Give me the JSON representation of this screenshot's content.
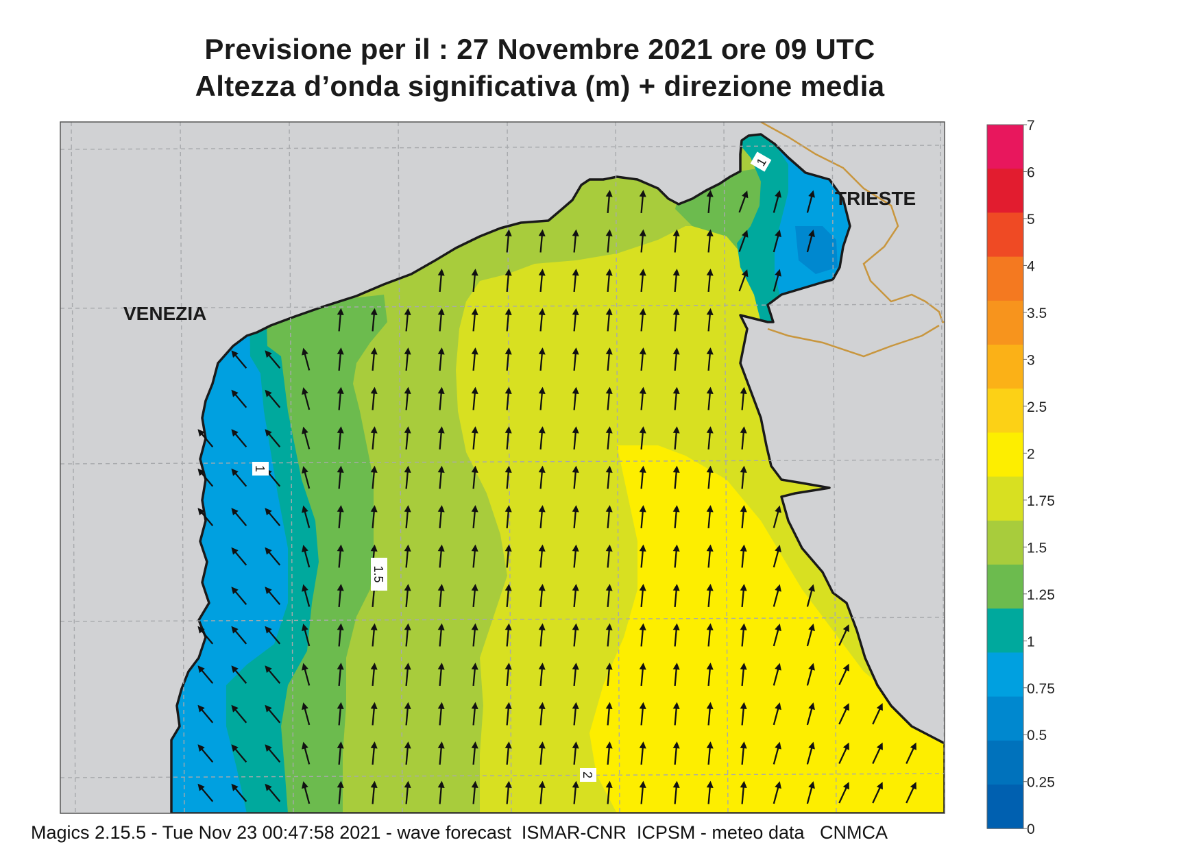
{
  "title_line1": "Previsione per il  :  27 Novembre  2021   ore 09 UTC",
  "title_line2": "Altezza d’onda significativa (m) + direzione media",
  "map_labels": {
    "venezia": "VENEZIA",
    "trieste": "TRIESTE",
    "contour_1a": "1",
    "contour_1b": "1",
    "contour_15": "1.5",
    "contour_2": "2"
  },
  "legend": {
    "labels": [
      "7",
      "6",
      "5",
      "4",
      "3.5",
      "3",
      "2.5",
      "2",
      "1.75",
      "1.5",
      "1.25",
      "1",
      "0.75",
      "0.5",
      "0.25",
      "0"
    ],
    "colors": [
      "#e8175d",
      "#e21c2f",
      "#ef4a24",
      "#f47920",
      "#f7941d",
      "#fbb117",
      "#fcd116",
      "#fdee00",
      "#d8e021",
      "#a8cc3c",
      "#6cbb4e",
      "#00a99d",
      "#00a0e0",
      "#0088cf",
      "#0072bc",
      "#0060b0"
    ]
  },
  "colors": {
    "land": "#d1d2d4",
    "border": "#c8963e",
    "grid": "#a7a9ac"
  },
  "arrows_icon": "north-arrow",
  "footer": "Magics 2.15.5 - Tue Nov 23 00:47:58 2021 - wave forecast  ISMAR-CNR  ICPSM - meteo data   CNMCA"
}
